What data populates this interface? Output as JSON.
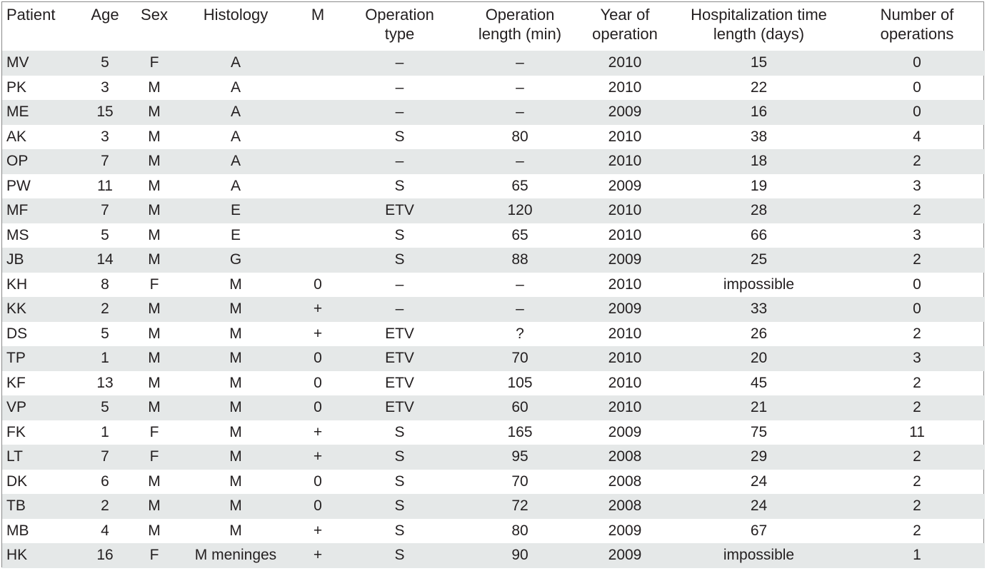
{
  "headers": [
    "Patient",
    "Age",
    "Sex",
    "Histology",
    "M",
    "Operation type",
    "Operation length (min)",
    "Year of operation",
    "Hospitalization time length (days)",
    "Number of operations"
  ],
  "header_lines": [
    [
      "Patient",
      ""
    ],
    [
      "Age",
      ""
    ],
    [
      "Sex",
      ""
    ],
    [
      "Histology",
      ""
    ],
    [
      "M",
      ""
    ],
    [
      "Operation",
      "type"
    ],
    [
      "Operation",
      "length (min)"
    ],
    [
      "Year of",
      "operation"
    ],
    [
      "Hospitalization time",
      "length (days)"
    ],
    [
      "Number of",
      "operations"
    ]
  ],
  "rows": [
    [
      "MV",
      "5",
      "F",
      "A",
      "",
      "–",
      "–",
      "2010",
      "15",
      "0"
    ],
    [
      "PK",
      "3",
      "M",
      "A",
      "",
      "–",
      "–",
      "2010",
      "22",
      "0"
    ],
    [
      "ME",
      "15",
      "M",
      "A",
      "",
      "–",
      "–",
      "2009",
      "16",
      "0"
    ],
    [
      "AK",
      "3",
      "M",
      "A",
      "",
      "S",
      "80",
      "2010",
      "38",
      "4"
    ],
    [
      "OP",
      "7",
      "M",
      "A",
      "",
      "–",
      "–",
      "2010",
      "18",
      "2"
    ],
    [
      "PW",
      "11",
      "M",
      "A",
      "",
      "S",
      "65",
      "2009",
      "19",
      "3"
    ],
    [
      "MF",
      "7",
      "M",
      "E",
      "",
      "ETV",
      "120",
      "2010",
      "28",
      "2"
    ],
    [
      "MS",
      "5",
      "M",
      "E",
      "",
      "S",
      "65",
      "2010",
      "66",
      "3"
    ],
    [
      "JB",
      "14",
      "M",
      "G",
      "",
      "S",
      "88",
      "2009",
      "25",
      "2"
    ],
    [
      "KH",
      "8",
      "F",
      "M",
      "0",
      "–",
      "–",
      "2010",
      "impossible",
      "0"
    ],
    [
      "KK",
      "2",
      "M",
      "M",
      "+",
      "–",
      "–",
      "2009",
      "33",
      "0"
    ],
    [
      "DS",
      "5",
      "M",
      "M",
      "+",
      "ETV",
      "?",
      "2010",
      "26",
      "2"
    ],
    [
      "TP",
      "1",
      "M",
      "M",
      "0",
      "ETV",
      "70",
      "2010",
      "20",
      "3"
    ],
    [
      "KF",
      "13",
      "M",
      "M",
      "0",
      "ETV",
      "105",
      "2010",
      "45",
      "2"
    ],
    [
      "VP",
      "5",
      "M",
      "M",
      "0",
      "ETV",
      "60",
      "2010",
      "21",
      "2"
    ],
    [
      "FK",
      "1",
      "F",
      "M",
      "+",
      "S",
      "165",
      "2009",
      "75",
      "11"
    ],
    [
      "LT",
      "7",
      "F",
      "M",
      "+",
      "S",
      "95",
      "2008",
      "29",
      "2"
    ],
    [
      "DK",
      "6",
      "M",
      "M",
      "0",
      "S",
      "70",
      "2008",
      "24",
      "2"
    ],
    [
      "TB",
      "2",
      "M",
      "M",
      "0",
      "S",
      "72",
      "2008",
      "24",
      "2"
    ],
    [
      "MB",
      "4",
      "M",
      "M",
      "+",
      "S",
      "80",
      "2009",
      "67",
      "2"
    ],
    [
      "HK",
      "16",
      "F",
      "M meninges",
      "+",
      "S",
      "90",
      "2009",
      "impossible",
      "1"
    ]
  ],
  "colors": {
    "stripe": "#e5e8e8",
    "text": "#231f20",
    "border": "#8a8a8a"
  }
}
